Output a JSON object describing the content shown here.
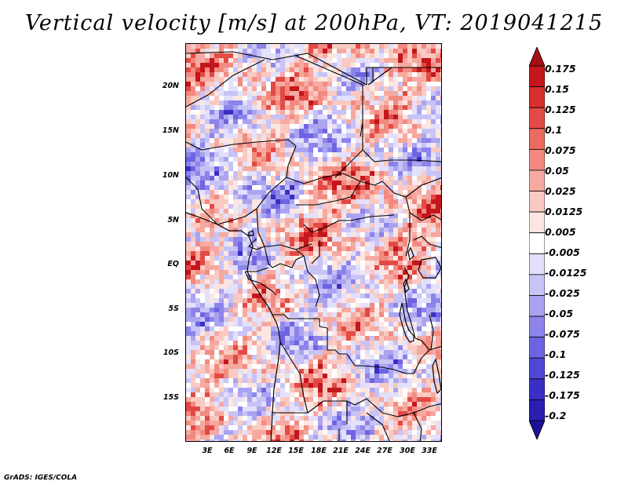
{
  "title": "Vertical velocity [m/s] at 200hPa, VT: 2019041215",
  "footer": "GrADS: IGES/COLA",
  "map": {
    "variable": "Vertical velocity",
    "units": "m/s",
    "level": "200hPa",
    "valid_time": "2019041215",
    "lat_labels": [
      "20N",
      "15N",
      "10N",
      "5N",
      "EQ",
      "5S",
      "10S",
      "15S"
    ],
    "lon_labels": [
      "3E",
      "6E",
      "9E",
      "12E",
      "15E",
      "18E",
      "21E",
      "24E",
      "27E",
      "30E",
      "33E"
    ]
  },
  "colorbar": {
    "labels": [
      "0.175",
      "0.15",
      "0.125",
      "0.1",
      "0.075",
      "0.05",
      "0.025",
      "0.0125",
      "0.005",
      "-0.005",
      "-0.0125",
      "-0.025",
      "-0.05",
      "-0.075",
      "-0.1",
      "-0.125",
      "-0.175",
      "-0.2"
    ],
    "colors": [
      "#a50f15",
      "#c4161c",
      "#d7302f",
      "#e34a45",
      "#ec6a60",
      "#f28a80",
      "#f6a9a0",
      "#f9c9c2",
      "#fce6e2",
      "#ffffff",
      "#e2e0fb",
      "#c7c3f6",
      "#aaa4f0",
      "#8c84ea",
      "#6e64e1",
      "#5147d5",
      "#3a2fc4",
      "#2a1fb0",
      "#1b1296"
    ]
  }
}
